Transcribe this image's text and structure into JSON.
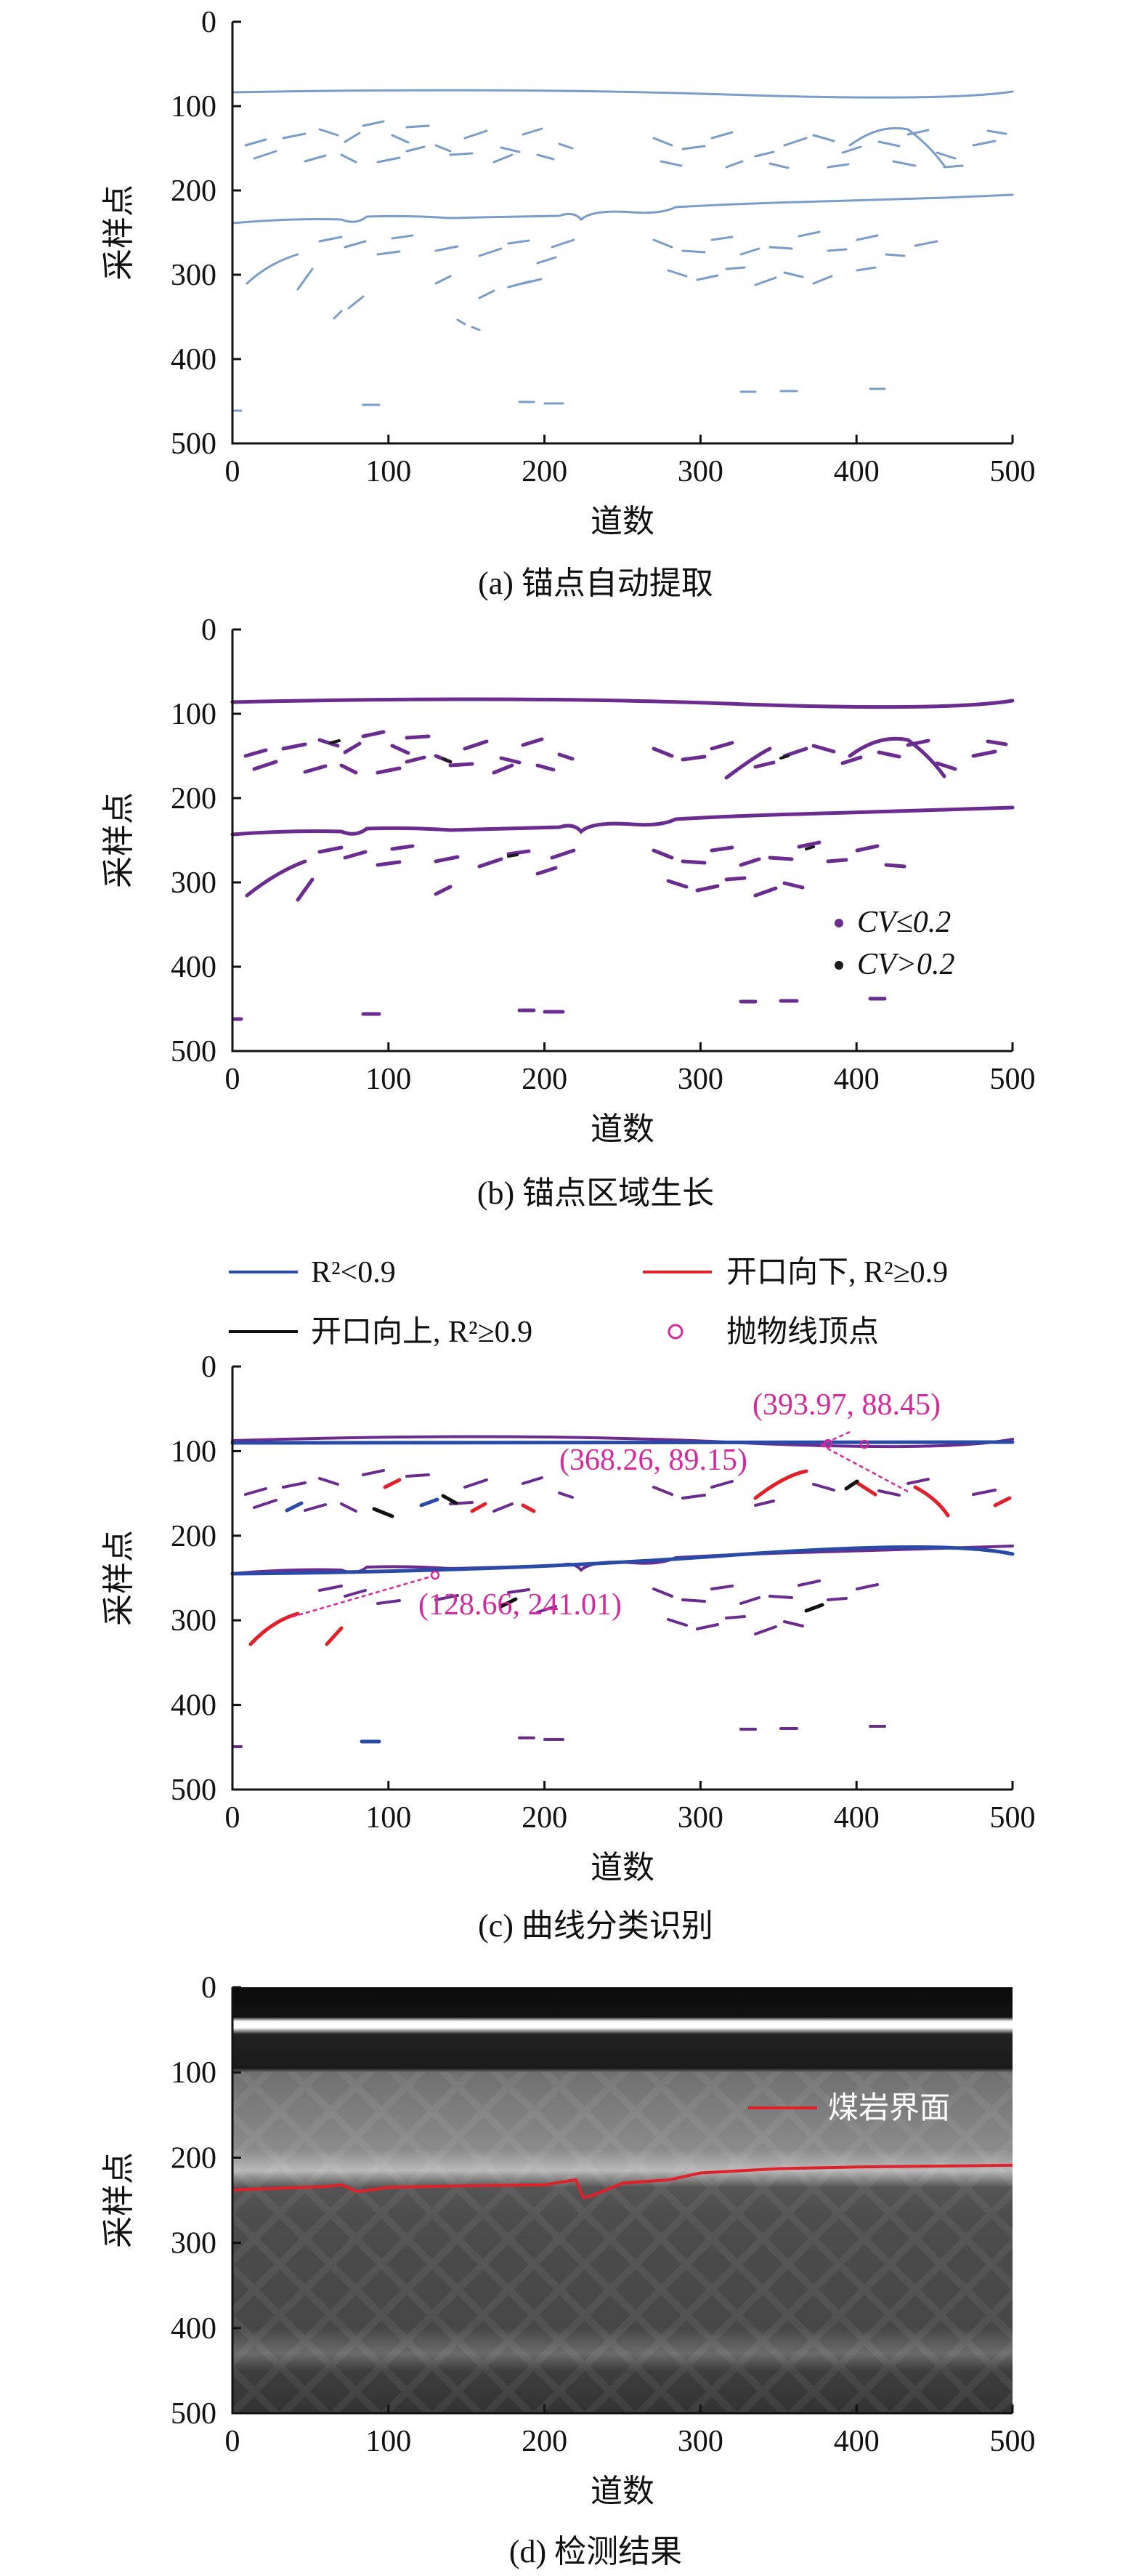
{
  "chart_data": [
    {
      "type": "line",
      "caption": "(a) 锚点自动提取",
      "xlabel": "道数",
      "ylabel": "采样点",
      "xlim": [
        0,
        500
      ],
      "ylim": [
        0,
        500
      ],
      "y_inverted": true,
      "xticks": [
        "0",
        "100",
        "200",
        "300",
        "400",
        "500"
      ],
      "yticks": [
        "0",
        "100",
        "200",
        "300",
        "400",
        "500"
      ],
      "colors": {
        "anchor": "#7a9cc8"
      },
      "series": [
        {
          "role": "horizon-top",
          "x": [
            0,
            100,
            200,
            300,
            400,
            500
          ],
          "y": [
            85,
            84,
            87,
            88,
            87,
            86
          ]
        },
        {
          "role": "horizon-interface",
          "x": [
            0,
            50,
            70,
            80,
            100,
            150,
            200,
            220,
            230,
            260,
            300,
            350,
            400,
            450,
            500
          ],
          "y": [
            238,
            236,
            232,
            240,
            232,
            233,
            233,
            226,
            240,
            228,
            218,
            213,
            212,
            211,
            209
          ]
        },
        {
          "role": "hyperbola-fragments-upper",
          "x": [
            10,
            40,
            70,
            100,
            130,
            160,
            190,
            250,
            280,
            310,
            340,
            370,
            400,
            430,
            460,
            490
          ],
          "y": [
            150,
            170,
            135,
            160,
            145,
            170,
            150,
            140,
            165,
            150,
            155,
            170,
            155,
            140,
            165,
            150
          ]
        },
        {
          "role": "hyperbola-fragments-lower",
          "x": [
            10,
            40,
            70,
            100,
            150,
            180,
            220,
            250,
            280,
            310,
            340,
            380,
            420
          ],
          "y": [
            320,
            300,
            270,
            285,
            340,
            300,
            275,
            300,
            280,
            300,
            275,
            285,
            275
          ]
        },
        {
          "role": "deep-fragments",
          "x": [
            85,
            180,
            200,
            290,
            330,
            400
          ],
          "y": [
            440,
            440,
            440,
            425,
            425,
            420
          ]
        }
      ]
    },
    {
      "type": "line",
      "caption": "(b) 锚点区域生长",
      "xlabel": "道数",
      "ylabel": "采样点",
      "xlim": [
        0,
        500
      ],
      "ylim": [
        0,
        500
      ],
      "y_inverted": true,
      "xticks": [
        "0",
        "100",
        "200",
        "300",
        "400",
        "500"
      ],
      "yticks": [
        "0",
        "100",
        "200",
        "300",
        "400",
        "500"
      ],
      "colors": {
        "cv_low": "#6b2c8f",
        "cv_high": "#1a1a1a"
      },
      "legend": [
        {
          "label": "CV≤0.2",
          "color": "#6b2c8f"
        },
        {
          "label": "CV>0.2",
          "color": "#1a1a1a"
        }
      ]
    },
    {
      "type": "line",
      "caption": "(c) 曲线分类识别",
      "xlabel": "道数",
      "ylabel": "采样点",
      "xlim": [
        0,
        500
      ],
      "ylim": [
        0,
        500
      ],
      "y_inverted": true,
      "xticks": [
        "0",
        "100",
        "200",
        "300",
        "400",
        "500"
      ],
      "yticks": [
        "0",
        "100",
        "200",
        "300",
        "400",
        "500"
      ],
      "colors": {
        "r2_low": "#2a4aa8",
        "open_down": "#e0202a",
        "open_up": "#111111",
        "vertex": "#d42a9e",
        "segments": "#6b2c8f"
      },
      "legend": [
        {
          "label": "R²<0.9",
          "color": "#2a4aa8",
          "kind": "line"
        },
        {
          "label": "开口向下, R²≥0.9",
          "color": "#e0202a",
          "kind": "line"
        },
        {
          "label": "开口向上, R²≥0.9",
          "color": "#111111",
          "kind": "line"
        },
        {
          "label": "抛物线顶点",
          "color": "#d42a9e",
          "kind": "circle"
        }
      ],
      "vertices": [
        {
          "label": "(393.97, 88.45)",
          "x": 393.97,
          "y": 88.45
        },
        {
          "label": "(368.26, 89.15)",
          "x": 368.26,
          "y": 89.15
        },
        {
          "label": "(128.66, 241.01)",
          "x": 128.66,
          "y": 241.01
        }
      ]
    },
    {
      "type": "heatmap",
      "caption": "(d) 检测结果",
      "xlabel": "道数",
      "ylabel": "采样点",
      "xlim": [
        0,
        500
      ],
      "ylim": [
        0,
        500
      ],
      "y_inverted": true,
      "xticks": [
        "0",
        "100",
        "200",
        "300",
        "400",
        "500"
      ],
      "yticks": [
        "0",
        "100",
        "200",
        "300",
        "400",
        "500"
      ],
      "colors": {
        "interface": "#e0202a"
      },
      "legend": [
        {
          "label": "煤岩界面",
          "color": "#e0202a"
        }
      ],
      "interface": {
        "x": [
          0,
          30,
          60,
          70,
          80,
          100,
          150,
          200,
          220,
          225,
          230,
          250,
          280,
          300,
          350,
          400,
          450,
          500
        ],
        "y": [
          238,
          236,
          234,
          232,
          240,
          235,
          233,
          232,
          226,
          247,
          245,
          230,
          226,
          218,
          213,
          211,
          210,
          209
        ]
      }
    }
  ]
}
